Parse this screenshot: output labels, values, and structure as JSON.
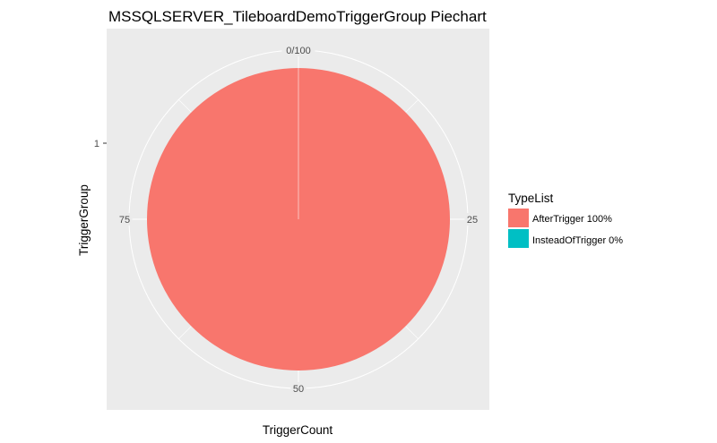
{
  "chart_data": {
    "type": "pie",
    "title": "MSSQLSERVER_TileboardDemoTriggerGroup Piechart",
    "xlabel": "TriggerCount",
    "ylabel": "TriggerGroup",
    "y_tick_labels": [
      "1"
    ],
    "angle_ticks": [
      {
        "label": "0/100",
        "value": 0
      },
      {
        "label": "25",
        "value": 25
      },
      {
        "label": "50",
        "value": 50
      },
      {
        "label": "75",
        "value": 75
      }
    ],
    "angle_range": [
      0,
      100
    ],
    "grid": true,
    "legend_placement": "right",
    "legend_title": "TypeList",
    "slices": [
      {
        "label": "AfterTrigger 100%",
        "value": 100,
        "color": "#F8766D"
      },
      {
        "label": "InsteadOfTrigger 0%",
        "value": 0,
        "color": "#00BFC4"
      }
    ],
    "panel_color": "#EBEBEB",
    "grid_color": "#FFFFFF"
  }
}
